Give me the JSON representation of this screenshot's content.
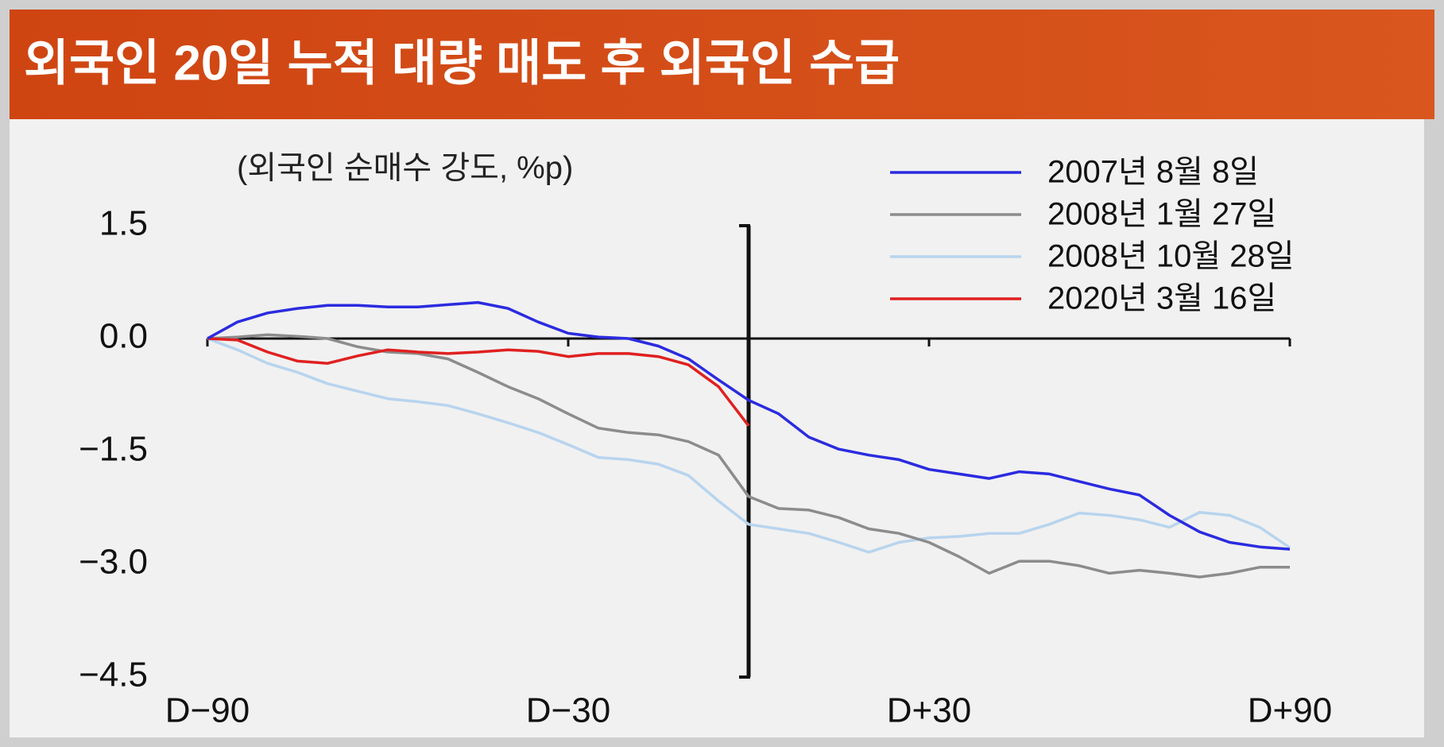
{
  "chart_data": {
    "type": "line",
    "title": "외국인 20일 누적 대량 매도 후 외국인 수급",
    "y_label": "(외국인 순매수 강도, %p)",
    "x": [
      -90,
      -85,
      -80,
      -75,
      -70,
      -65,
      -60,
      -55,
      -50,
      -45,
      -40,
      -35,
      -30,
      -25,
      -20,
      -15,
      -10,
      -5,
      0,
      5,
      10,
      15,
      20,
      25,
      30,
      35,
      40,
      45,
      50,
      55,
      60,
      65,
      70,
      75,
      80,
      85,
      90
    ],
    "xlim": [
      -90,
      90
    ],
    "xticks": [
      {
        "value": -90,
        "label": "D−90"
      },
      {
        "value": -30,
        "label": "D−30"
      },
      {
        "value": 30,
        "label": "D+30"
      },
      {
        "value": 90,
        "label": "D+90"
      }
    ],
    "ylim": [
      -4.5,
      1.5
    ],
    "yticks": [
      1.5,
      {
        "value": 0,
        "label": "0.0"
      },
      {
        "value": -1.5,
        "label": "−1.5"
      },
      {
        "value": -3.0,
        "label": "−3.0"
      },
      {
        "value": -4.5,
        "label": "−4.5"
      }
    ],
    "vline": 0,
    "legend": "upper right",
    "series": [
      {
        "name": "2007년 8월 8일",
        "color": "#2b2be0",
        "values": [
          0,
          0.22,
          0.34,
          0.4,
          0.44,
          0.44,
          0.42,
          0.42,
          0.45,
          0.48,
          0.4,
          0.22,
          0.07,
          0.02,
          0.0,
          -0.1,
          -0.27,
          -0.55,
          -0.82,
          -1.0,
          -1.31,
          -1.47,
          -1.55,
          -1.61,
          -1.74,
          -1.8,
          -1.86,
          -1.77,
          -1.8,
          -1.9,
          -2.0,
          -2.08,
          -2.35,
          -2.57,
          -2.71,
          -2.77,
          -2.8
        ]
      },
      {
        "name": "2008년 1월 27일",
        "color": "#8c8c8c",
        "values": [
          0,
          0.02,
          0.05,
          0.03,
          0.0,
          -0.11,
          -0.18,
          -0.2,
          -0.27,
          -0.45,
          -0.64,
          -0.8,
          -1.0,
          -1.19,
          -1.25,
          -1.28,
          -1.37,
          -1.55,
          -2.1,
          -2.26,
          -2.28,
          -2.38,
          -2.53,
          -2.59,
          -2.71,
          -2.9,
          -3.12,
          -2.96,
          -2.96,
          -3.02,
          -3.12,
          -3.08,
          -3.12,
          -3.17,
          -3.12,
          -3.04,
          -3.04
        ]
      },
      {
        "name": "2008년 10월 28일",
        "color": "#b8d4ee",
        "values": [
          0,
          -0.15,
          -0.33,
          -0.45,
          -0.6,
          -0.7,
          -0.8,
          -0.84,
          -0.89,
          -1.0,
          -1.12,
          -1.25,
          -1.41,
          -1.58,
          -1.61,
          -1.67,
          -1.82,
          -2.16,
          -2.47,
          -2.53,
          -2.59,
          -2.71,
          -2.84,
          -2.71,
          -2.65,
          -2.63,
          -2.59,
          -2.59,
          -2.47,
          -2.32,
          -2.35,
          -2.41,
          -2.51,
          -2.31,
          -2.35,
          -2.51,
          -2.78
        ]
      },
      {
        "name": "2020년 3월 16일",
        "color": "#e02020",
        "values": [
          0,
          -0.02,
          -0.18,
          -0.3,
          -0.33,
          -0.23,
          -0.15,
          -0.18,
          -0.2,
          -0.18,
          -0.15,
          -0.17,
          -0.24,
          -0.2,
          -0.2,
          -0.24,
          -0.35,
          -0.64,
          -1.16,
          null,
          null,
          null,
          null,
          null,
          null,
          null,
          null,
          null,
          null,
          null,
          null,
          null,
          null,
          null,
          null,
          null,
          null
        ]
      }
    ]
  }
}
